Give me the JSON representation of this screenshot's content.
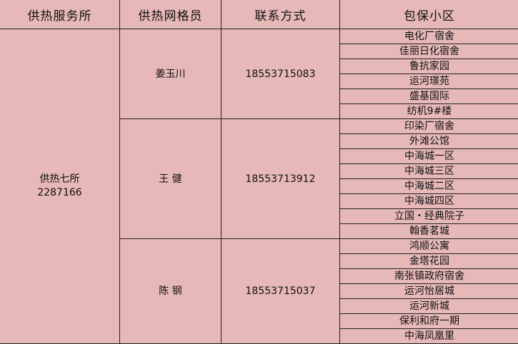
{
  "headers": [
    "供热服务所",
    "供热网格员",
    "联系方式",
    "包保小区"
  ],
  "station": {
    "name": "供热七所",
    "phone": "2287166"
  },
  "groups": [
    {
      "staff": "姜玉川",
      "phone": "18553715083",
      "communities": [
        "电化厂宿舍",
        "佳丽日化宿舍",
        "鲁抗家园",
        "运河璟苑",
        "盛基国际",
        "纺机9#楼"
      ]
    },
    {
      "staff": "王 健",
      "phone": "18553713912",
      "communities": [
        "印染厂宿舍",
        "外滩公馆",
        "中海城一区",
        "中海城三区",
        "中海城二区",
        "中海城四区",
        "立国・经典院子",
        "翰香茗城"
      ]
    },
    {
      "staff": "陈 钢",
      "phone": "18553715037",
      "communities": [
        "鸿顺公寓",
        "金塔花园",
        "南张镇政府宿舍",
        "运河怡居城",
        "运河新城",
        "保利和府一期",
        "中海凤凰里"
      ]
    }
  ]
}
